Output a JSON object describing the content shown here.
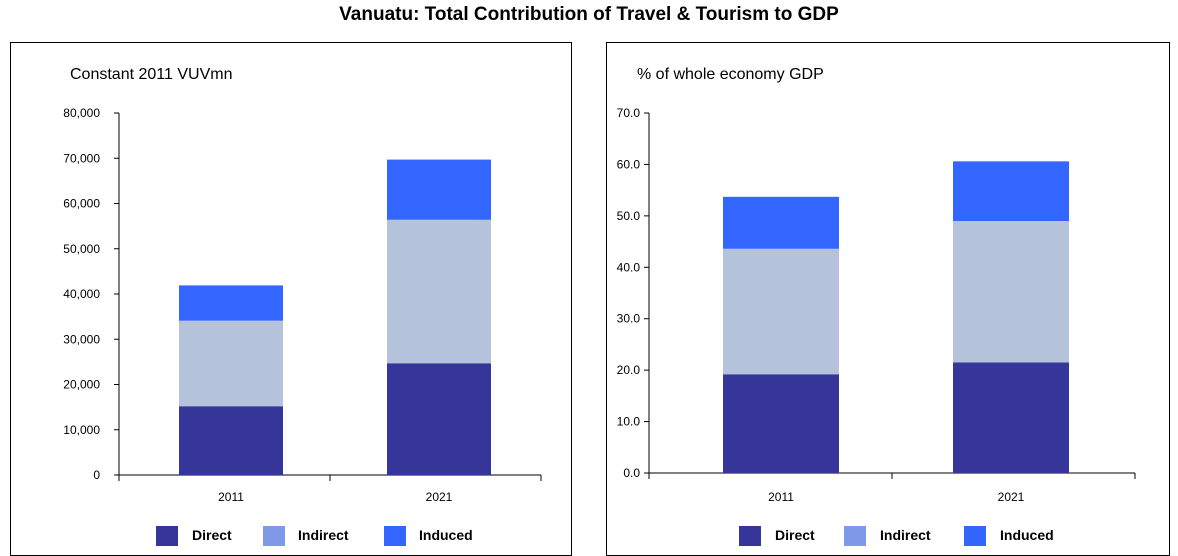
{
  "title": "Vanuatu: Total Contribution of Travel & Tourism to GDP",
  "colors": {
    "Direct": "#35359a",
    "Indirect": "#b5c2dc",
    "Induced": "#3366ff",
    "legend_indirect": "#7f99e8"
  },
  "legend": [
    "Direct",
    "Indirect",
    "Induced"
  ],
  "chart_data": [
    {
      "type": "bar",
      "stacked": true,
      "subtitle": "Constant 2011 VUVmn",
      "categories": [
        "2011",
        "2021"
      ],
      "series": [
        {
          "name": "Direct",
          "values": [
            15200,
            24700
          ]
        },
        {
          "name": "Indirect",
          "values": [
            18900,
            31700
          ]
        },
        {
          "name": "Induced",
          "values": [
            7800,
            13300
          ]
        }
      ],
      "ylim": [
        0,
        80000
      ],
      "yticks": [
        "0",
        "10,000",
        "20,000",
        "30,000",
        "40,000",
        "50,000",
        "60,000",
        "70,000",
        "80,000"
      ],
      "grid": false,
      "legend_position": "bottom"
    },
    {
      "type": "bar",
      "stacked": true,
      "subtitle": "% of whole economy GDP",
      "categories": [
        "2011",
        "2021"
      ],
      "series": [
        {
          "name": "Direct",
          "values": [
            19.2,
            21.5
          ]
        },
        {
          "name": "Indirect",
          "values": [
            24.4,
            27.5
          ]
        },
        {
          "name": "Induced",
          "values": [
            10.1,
            11.6
          ]
        }
      ],
      "ylim": [
        0,
        70
      ],
      "yticks": [
        "0.0",
        "10.0",
        "20.0",
        "30.0",
        "40.0",
        "50.0",
        "60.0",
        "70.0"
      ],
      "grid": false,
      "legend_position": "bottom"
    }
  ]
}
